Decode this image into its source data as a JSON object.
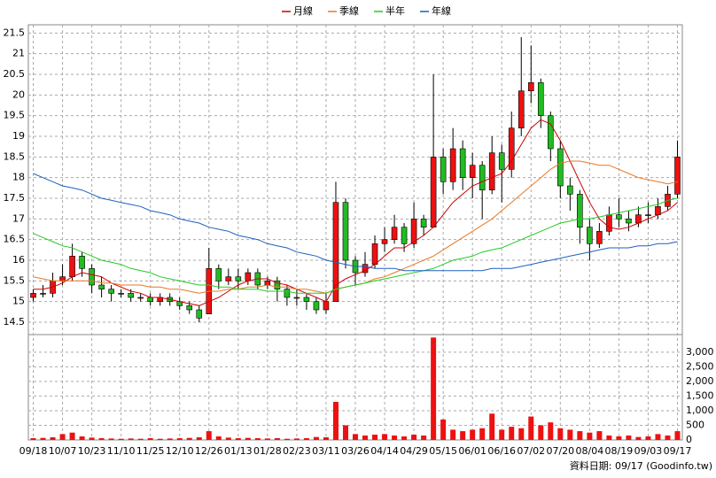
{
  "chart_data": [
    {
      "type": "candlestick",
      "categories": [
        "09/18",
        null,
        null,
        "10/07",
        null,
        null,
        "10/23",
        null,
        null,
        "11/10",
        null,
        null,
        "11/25",
        null,
        null,
        "12/10",
        null,
        null,
        "12/26",
        null,
        null,
        "01/13",
        null,
        null,
        "01/28",
        null,
        null,
        "02/23",
        null,
        null,
        "03/11",
        null,
        null,
        "03/26",
        null,
        null,
        "04/14",
        null,
        null,
        "04/29",
        null,
        null,
        "05/15",
        null,
        null,
        "06/01",
        null,
        null,
        "06/16",
        null,
        null,
        "07/02",
        null,
        null,
        "07/20",
        null,
        null,
        "08/04",
        null,
        null,
        "08/19",
        null,
        null,
        "09/03",
        null,
        null,
        "09/17"
      ],
      "open": [
        15.1,
        15.2,
        15.2,
        15.5,
        15.6,
        16.1,
        15.8,
        15.4,
        15.3,
        15.2,
        15.2,
        15.1,
        15.1,
        15.0,
        15.1,
        15.0,
        14.9,
        14.8,
        14.7,
        15.8,
        15.5,
        15.6,
        15.5,
        15.7,
        15.4,
        15.5,
        15.3,
        15.1,
        15.1,
        15.0,
        14.8,
        15.0,
        17.4,
        16.0,
        15.7,
        15.9,
        16.4,
        16.5,
        16.8,
        16.4,
        17.0,
        16.8,
        18.5,
        17.9,
        18.7,
        18.0,
        18.3,
        17.7,
        18.6,
        18.2,
        19.2,
        20.1,
        20.3,
        19.5,
        18.7,
        17.8,
        17.6,
        16.8,
        16.4,
        16.7,
        17.1,
        17.0,
        16.9,
        17.1,
        17.1,
        17.3,
        17.6
      ],
      "high": [
        15.3,
        15.4,
        15.7,
        15.9,
        16.4,
        16.2,
        15.9,
        15.6,
        15.4,
        15.3,
        15.3,
        15.2,
        15.2,
        15.2,
        15.2,
        15.1,
        15.0,
        14.9,
        16.3,
        15.9,
        15.8,
        15.8,
        15.8,
        15.8,
        15.6,
        15.6,
        15.4,
        15.3,
        15.2,
        15.1,
        15.2,
        17.9,
        17.5,
        16.1,
        16.2,
        16.6,
        16.8,
        17.1,
        16.9,
        17.4,
        17.1,
        20.5,
        18.7,
        19.2,
        18.9,
        18.6,
        18.4,
        19.0,
        18.8,
        19.6,
        21.4,
        21.2,
        20.4,
        19.6,
        18.9,
        18.0,
        17.7,
        17.0,
        16.9,
        17.3,
        17.5,
        17.2,
        17.3,
        17.4,
        17.5,
        17.8,
        18.9
      ],
      "low": [
        15.0,
        15.1,
        15.1,
        15.4,
        15.5,
        15.6,
        15.2,
        15.1,
        15.0,
        15.1,
        15.0,
        15.0,
        14.9,
        14.9,
        14.9,
        14.8,
        14.7,
        14.5,
        14.7,
        15.3,
        15.4,
        15.3,
        15.4,
        15.3,
        15.3,
        15.0,
        14.9,
        14.9,
        14.8,
        14.7,
        14.7,
        15.0,
        15.8,
        15.4,
        15.6,
        15.8,
        16.2,
        16.4,
        16.2,
        16.3,
        16.6,
        16.8,
        17.6,
        17.7,
        17.7,
        17.5,
        17.0,
        17.6,
        17.4,
        18.0,
        19.0,
        19.8,
        19.2,
        18.4,
        17.5,
        17.2,
        16.4,
        16.0,
        16.3,
        16.6,
        16.8,
        16.7,
        16.8,
        16.9,
        17.0,
        17.2,
        17.5
      ],
      "close": [
        15.2,
        15.2,
        15.5,
        15.6,
        16.1,
        15.8,
        15.4,
        15.3,
        15.2,
        15.2,
        15.1,
        15.1,
        15.0,
        15.1,
        15.0,
        14.9,
        14.8,
        14.6,
        15.8,
        15.5,
        15.6,
        15.5,
        15.7,
        15.4,
        15.5,
        15.3,
        15.1,
        15.1,
        15.0,
        14.8,
        15.0,
        17.4,
        16.0,
        15.7,
        15.9,
        16.4,
        16.5,
        16.8,
        16.4,
        17.0,
        16.8,
        18.5,
        17.9,
        18.7,
        18.0,
        18.3,
        17.7,
        18.6,
        18.2,
        19.2,
        20.1,
        20.3,
        19.5,
        18.7,
        17.8,
        17.6,
        16.8,
        16.4,
        16.7,
        17.1,
        17.0,
        16.9,
        17.1,
        17.1,
        17.3,
        17.6,
        18.5
      ],
      "up_color": "#ee1111",
      "down_color": "#22bb22",
      "series": [
        {
          "name": "月線",
          "color": "#cc0000",
          "values": [
            15.3,
            15.3,
            15.35,
            15.45,
            15.6,
            15.7,
            15.65,
            15.6,
            15.45,
            15.35,
            15.25,
            15.2,
            15.1,
            15.1,
            15.05,
            15.0,
            14.95,
            14.9,
            15.0,
            15.1,
            15.25,
            15.4,
            15.5,
            15.55,
            15.55,
            15.45,
            15.4,
            15.3,
            15.2,
            15.1,
            15.0,
            15.4,
            15.55,
            15.65,
            15.75,
            15.9,
            16.1,
            16.3,
            16.3,
            16.45,
            16.6,
            16.8,
            17.1,
            17.4,
            17.6,
            17.8,
            17.9,
            18.0,
            18.1,
            18.4,
            18.8,
            19.2,
            19.4,
            19.3,
            18.9,
            18.4,
            17.9,
            17.4,
            17.0,
            16.8,
            16.75,
            16.8,
            16.9,
            17.0,
            17.1,
            17.2,
            17.4
          ]
        },
        {
          "name": "季線",
          "color": "#e87722",
          "values": [
            15.6,
            15.55,
            15.5,
            15.5,
            15.5,
            15.5,
            15.5,
            15.45,
            15.45,
            15.4,
            15.4,
            15.4,
            15.35,
            15.35,
            15.3,
            15.3,
            15.25,
            15.2,
            15.25,
            15.25,
            15.3,
            15.3,
            15.35,
            15.35,
            15.4,
            15.35,
            15.35,
            15.3,
            15.3,
            15.25,
            15.2,
            15.3,
            15.35,
            15.4,
            15.45,
            15.55,
            15.6,
            15.7,
            15.8,
            15.9,
            16.0,
            16.1,
            16.25,
            16.4,
            16.55,
            16.7,
            16.85,
            17.0,
            17.2,
            17.4,
            17.6,
            17.8,
            18.0,
            18.2,
            18.35,
            18.4,
            18.4,
            18.35,
            18.3,
            18.3,
            18.2,
            18.1,
            18.0,
            17.95,
            17.9,
            17.85,
            17.9
          ]
        },
        {
          "name": "半年",
          "color": "#22cc22",
          "values": [
            16.65,
            16.55,
            16.45,
            16.35,
            16.3,
            16.2,
            16.1,
            16.0,
            15.95,
            15.9,
            15.8,
            15.75,
            15.7,
            15.6,
            15.55,
            15.5,
            15.45,
            15.4,
            15.4,
            15.35,
            15.35,
            15.3,
            15.3,
            15.3,
            15.25,
            15.25,
            15.25,
            15.2,
            15.2,
            15.2,
            15.2,
            15.3,
            15.35,
            15.4,
            15.45,
            15.5,
            15.55,
            15.6,
            15.65,
            15.7,
            15.75,
            15.8,
            15.9,
            16.0,
            16.05,
            16.1,
            16.2,
            16.25,
            16.3,
            16.4,
            16.5,
            16.6,
            16.7,
            16.8,
            16.9,
            16.95,
            17.0,
            17.0,
            17.05,
            17.1,
            17.15,
            17.2,
            17.25,
            17.3,
            17.35,
            17.45,
            17.5
          ]
        },
        {
          "name": "年線",
          "color": "#1f5fbf",
          "values": [
            18.1,
            18.0,
            17.9,
            17.8,
            17.75,
            17.7,
            17.6,
            17.5,
            17.45,
            17.4,
            17.35,
            17.3,
            17.2,
            17.15,
            17.1,
            17.0,
            16.95,
            16.9,
            16.8,
            16.75,
            16.7,
            16.6,
            16.55,
            16.5,
            16.4,
            16.35,
            16.3,
            16.2,
            16.15,
            16.1,
            16.0,
            15.95,
            15.9,
            15.85,
            15.85,
            15.8,
            15.8,
            15.8,
            15.75,
            15.75,
            15.75,
            15.75,
            15.75,
            15.75,
            15.75,
            15.75,
            15.75,
            15.8,
            15.8,
            15.8,
            15.85,
            15.9,
            15.95,
            16.0,
            16.05,
            16.1,
            16.15,
            16.2,
            16.25,
            16.3,
            16.3,
            16.3,
            16.35,
            16.35,
            16.4,
            16.4,
            16.45
          ]
        }
      ],
      "ylim": [
        14.2,
        21.7
      ],
      "yticks": [
        14.5,
        15,
        15.5,
        16,
        16.5,
        17,
        17.5,
        18,
        18.5,
        19,
        19.5,
        20,
        20.5,
        21,
        21.5
      ],
      "grid": true
    },
    {
      "type": "bar",
      "values": [
        60,
        70,
        90,
        200,
        250,
        120,
        80,
        60,
        50,
        40,
        50,
        40,
        60,
        40,
        50,
        60,
        70,
        90,
        300,
        120,
        80,
        60,
        70,
        60,
        50,
        60,
        40,
        50,
        60,
        100,
        90,
        1300,
        500,
        200,
        150,
        180,
        200,
        150,
        120,
        180,
        150,
        3500,
        700,
        350,
        300,
        350,
        400,
        900,
        350,
        450,
        400,
        800,
        500,
        600,
        400,
        350,
        300,
        250,
        300,
        150,
        120,
        150,
        100,
        120,
        200,
        150,
        300
      ],
      "color": "#ee1111",
      "ylim": [
        0,
        3600
      ],
      "yticks": [
        0,
        500,
        {
          "value": 1000,
          "label": "1,000"
        },
        {
          "value": 1500,
          "label": "1,500"
        },
        {
          "value": 2000,
          "label": "2,000"
        },
        {
          "value": 2500,
          "label": "2,500"
        },
        {
          "value": 3000,
          "label": "3,000"
        }
      ],
      "grid": true
    }
  ],
  "footer": "資料日期: 09/17 (Goodinfo.tw)"
}
